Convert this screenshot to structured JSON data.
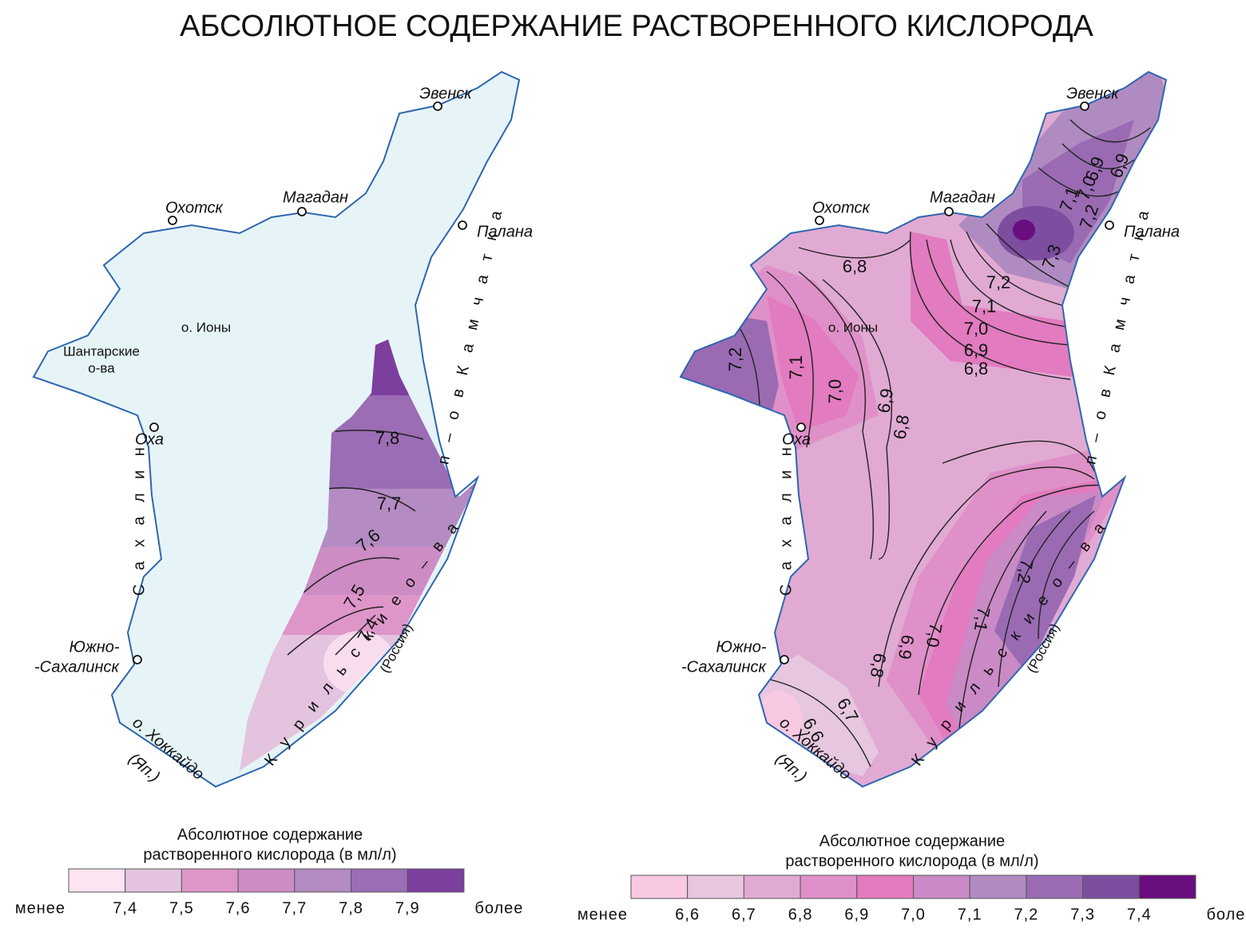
{
  "title": "АБСОЛЮТНОЕ СОДЕРЖАНИЕ РАСТВОРЕННОГО КИСЛОРОДА",
  "maps": [
    {
      "sea_color": "#e6f4f8",
      "coast_color": "#2f66ad",
      "places": [
        {
          "label_lines": [
            "Эвенск"
          ]
        },
        {
          "label_lines": [
            "Магадан"
          ]
        },
        {
          "label_lines": [
            "Охотск"
          ]
        },
        {
          "label_lines": [
            "Палана"
          ]
        },
        {
          "label_lines": [
            "Оха"
          ]
        },
        {
          "label_lines": [
            "Южно-",
            "-Сахалинск"
          ]
        }
      ],
      "labels": [
        "о. Ионы",
        "Шантарские",
        "о-ва",
        "п – о в    К а м ч а т к а",
        "С а х а л и н",
        "К у р и л ь с к и е   о – в а",
        "(Россия)",
        "о. Хоккайдо",
        "(Яп.)"
      ],
      "contour_labels": [
        "7,8",
        "7,7",
        "7,6",
        "7,5",
        "7,4"
      ],
      "legend": {
        "title_lines": [
          "Абсолютное содержание",
          "растворенного кислорода (в мл/л)"
        ],
        "colors": [
          "#fce4f1",
          "#e4c3de",
          "#de96c9",
          "#cd8cc4",
          "#b48bc2",
          "#9b6db4",
          "#7d3f9e"
        ],
        "labels": [
          "менее",
          "7,4",
          "7,5",
          "7,6",
          "7,7",
          "7,8",
          "7,9",
          "более"
        ]
      }
    },
    {
      "sea_color": "#e0aad3",
      "coast_color": "#2f66ad",
      "places": [
        {
          "label_lines": [
            "Эвенск"
          ]
        },
        {
          "label_lines": [
            "Магадан"
          ]
        },
        {
          "label_lines": [
            "Охотск"
          ]
        },
        {
          "label_lines": [
            "Палана"
          ]
        },
        {
          "label_lines": [
            "Оха"
          ]
        },
        {
          "label_lines": [
            "Южно-",
            "-Сахалинск"
          ]
        }
      ],
      "labels": [
        "о. Ионы",
        "п – о в    К а м ч а т к а",
        "С а х а л и н",
        "К у р и л ь с к и е   о – в а",
        "(Россия)",
        "о. Хоккайдо",
        "(Яп.)"
      ],
      "contour_labels": [
        "6,9",
        "6,9",
        "7,0",
        "7,1",
        "7,2",
        "7,3",
        "6,8",
        "7,2",
        "7,1",
        "7,0",
        "6,9",
        "6,8",
        "7,2",
        "7,1",
        "7,0",
        "6,9",
        "6,8",
        "7,2",
        "7,1",
        "7,0",
        "6,9",
        "6,8",
        "6,7",
        "6,6"
      ],
      "legend": {
        "title_lines": [
          "Абсолютное содержание",
          "растворенного кислорода (в мл/л)"
        ],
        "colors": [
          "#f9c8e2",
          "#e6c7df",
          "#e0aad3",
          "#e090c8",
          "#e27bbf",
          "#c98ac5",
          "#b08bc2",
          "#9a6bb3",
          "#7d4da0",
          "#6a0d7f"
        ],
        "labels": [
          "менее",
          "6,6",
          "6,7",
          "6,8",
          "6,9",
          "7,0",
          "7,1",
          "7,2",
          "7,3",
          "7,4",
          "более"
        ]
      }
    }
  ]
}
